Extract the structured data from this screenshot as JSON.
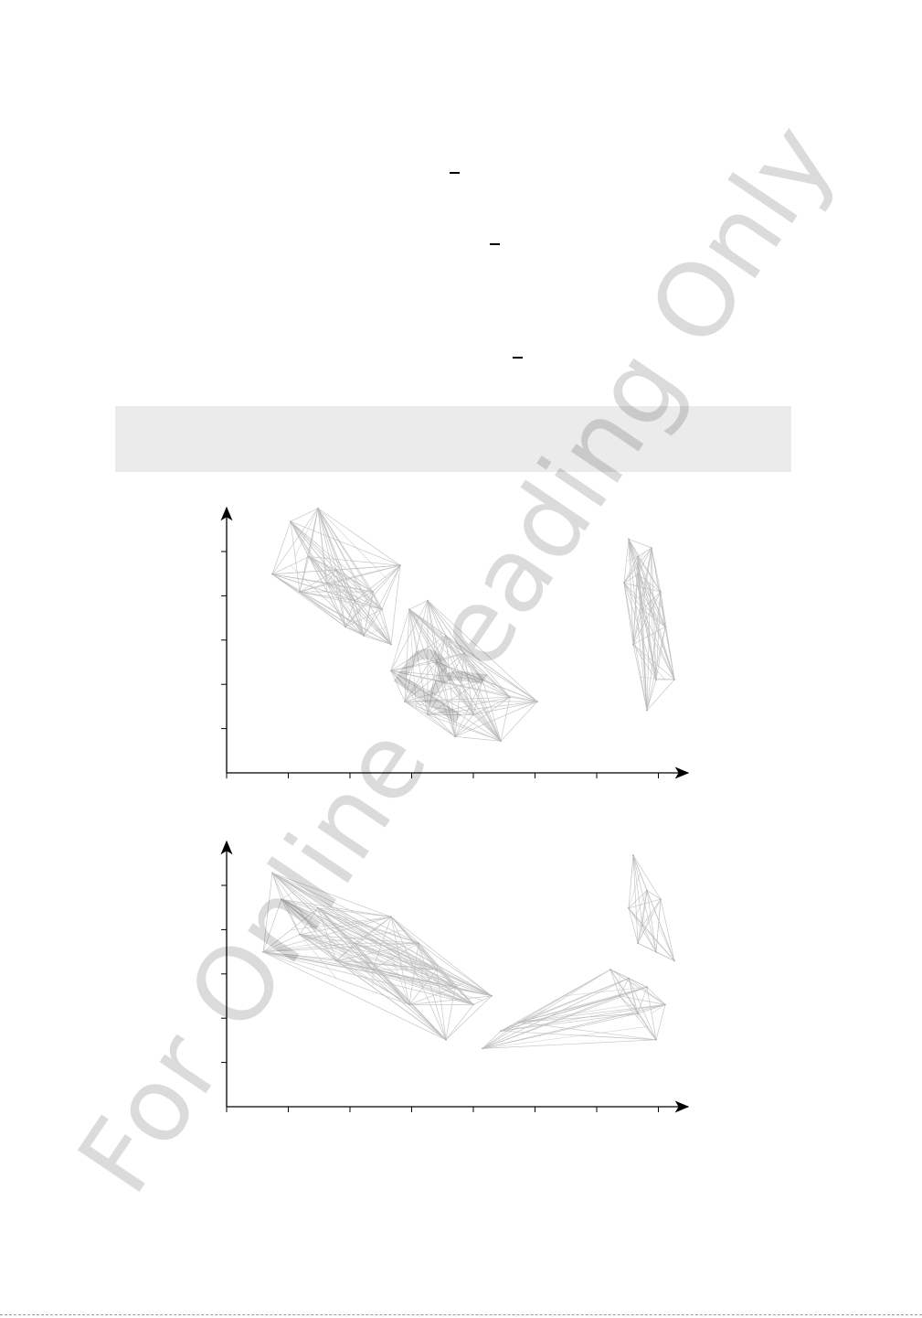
{
  "watermark": {
    "text": "For Online Reading Only",
    "color": "#000000"
  },
  "equations": {
    "count": 3,
    "note_bars": 3
  },
  "shaded_box": {
    "color": "#ebebeb"
  },
  "plot_style": {
    "edge_color": "#bdbdbd",
    "axis_color": "#000000"
  },
  "chart_data": [
    {
      "type": "network-scatter",
      "panel": "top",
      "x_ticks": 8,
      "y_ticks": 5,
      "clusters": [
        {
          "name": "",
          "nodes": [
            [
              1.2,
              5.6
            ],
            [
              1.8,
              5.9
            ],
            [
              0.8,
              4.4
            ],
            [
              1.4,
              4.0
            ],
            [
              2.0,
              4.2
            ],
            [
              2.6,
              3.8
            ],
            [
              3.2,
              3.6
            ],
            [
              3.6,
              4.6
            ],
            [
              2.8,
              3.0
            ],
            [
              3.4,
              2.8
            ],
            [
              2.4,
              3.2
            ],
            [
              1.6,
              4.8
            ],
            [
              3.0,
              4.0
            ],
            [
              2.2,
              4.5
            ]
          ]
        },
        {
          "name": "",
          "nodes": [
            [
              3.4,
              2.2
            ],
            [
              3.8,
              3.6
            ],
            [
              4.2,
              3.8
            ],
            [
              4.6,
              3.0
            ],
            [
              5.0,
              2.6
            ],
            [
              5.4,
              2.0
            ],
            [
              6.0,
              1.6
            ],
            [
              6.6,
              1.5
            ],
            [
              5.8,
              0.6
            ],
            [
              4.8,
              0.7
            ],
            [
              4.2,
              1.2
            ],
            [
              3.7,
              1.5
            ],
            [
              4.4,
              2.4
            ],
            [
              5.2,
              1.2
            ]
          ]
        },
        {
          "name": "",
          "nodes": [
            [
              8.6,
              5.2
            ],
            [
              8.8,
              4.8
            ],
            [
              9.1,
              5.0
            ],
            [
              8.5,
              4.2
            ],
            [
              8.9,
              3.6
            ],
            [
              9.4,
              3.2
            ],
            [
              9.2,
              2.0
            ],
            [
              8.7,
              2.8
            ],
            [
              9.0,
              1.3
            ],
            [
              9.6,
              2.0
            ],
            [
              9.3,
              4.0
            ],
            [
              8.8,
              4.4
            ]
          ]
        }
      ]
    },
    {
      "type": "network-scatter",
      "panel": "bottom",
      "x_ticks": 8,
      "y_ticks": 5,
      "clusters": [
        {
          "name": "",
          "nodes": [
            [
              0.8,
              5.2
            ],
            [
              1.0,
              4.6
            ],
            [
              0.6,
              3.4
            ],
            [
              1.8,
              4.4
            ],
            [
              2.6,
              3.6
            ],
            [
              3.0,
              3.0
            ],
            [
              3.4,
              4.2
            ],
            [
              4.0,
              3.6
            ],
            [
              4.4,
              3.0
            ],
            [
              4.8,
              2.6
            ],
            [
              5.2,
              2.2
            ],
            [
              5.6,
              2.4
            ],
            [
              4.6,
              1.4
            ],
            [
              3.8,
              2.2
            ],
            [
              2.2,
              3.2
            ],
            [
              1.4,
              3.8
            ]
          ]
        },
        {
          "name": "",
          "nodes": [
            [
              5.4,
              1.2
            ],
            [
              5.8,
              1.6
            ],
            [
              6.2,
              1.8
            ],
            [
              8.2,
              3.0
            ],
            [
              8.6,
              2.8
            ],
            [
              9.0,
              2.6
            ],
            [
              9.4,
              2.2
            ],
            [
              8.8,
              2.0
            ],
            [
              9.2,
              1.4
            ],
            [
              8.4,
              2.4
            ]
          ]
        },
        {
          "name": "",
          "nodes": [
            [
              8.7,
              5.6
            ],
            [
              8.6,
              4.4
            ],
            [
              8.8,
              3.6
            ],
            [
              9.0,
              4.8
            ],
            [
              9.2,
              3.4
            ],
            [
              9.6,
              3.2
            ],
            [
              8.9,
              4.0
            ],
            [
              9.3,
              4.6
            ]
          ]
        }
      ]
    }
  ]
}
